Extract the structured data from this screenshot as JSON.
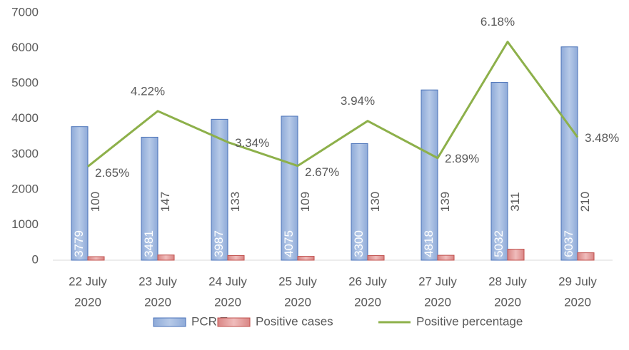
{
  "chart_data": {
    "type": "bar",
    "categories": [
      [
        "22 July",
        "2020"
      ],
      [
        "23 July",
        "2020"
      ],
      [
        "24 July",
        "2020"
      ],
      [
        "25 July",
        "2020"
      ],
      [
        "26 July",
        "2020"
      ],
      [
        "27 July",
        "2020"
      ],
      [
        "28 July",
        "2020"
      ],
      [
        "29 July",
        "2020"
      ]
    ],
    "series": [
      {
        "name": "PCR Tests",
        "type": "bar",
        "color": "#a9bfe2",
        "values": [
          3779,
          3481,
          3987,
          4075,
          3300,
          4818,
          5032,
          6037
        ]
      },
      {
        "name": "Positive cases",
        "type": "bar",
        "color": "#e6a3a2",
        "values": [
          100,
          147,
          133,
          109,
          130,
          139,
          311,
          210
        ]
      },
      {
        "name": "Positive percentage",
        "type": "line",
        "axis": "y2",
        "color": "#8db04a",
        "values": [
          2.65,
          4.22,
          3.34,
          2.67,
          3.94,
          2.89,
          6.18,
          3.48
        ],
        "value_labels": [
          "2.65%",
          "4.22%",
          "3.34%",
          "2.67%",
          "3.94%",
          "2.89%",
          "6.18%",
          "3.48%"
        ]
      }
    ],
    "ylim": [
      0,
      7000
    ],
    "yticks": [
      0,
      1000,
      2000,
      3000,
      4000,
      5000,
      6000,
      7000
    ],
    "y2lim": [
      0,
      7
    ],
    "legend": "bottom"
  }
}
